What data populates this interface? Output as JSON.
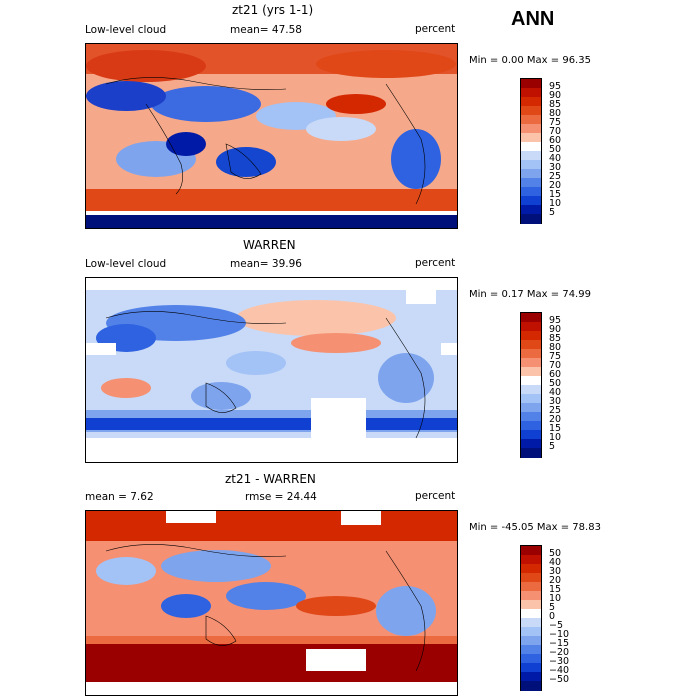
{
  "season": "ANN",
  "panels": [
    {
      "title": "zt21 (yrs 1-1)",
      "left_label": "Low-level cloud",
      "mid_label": "mean=  47.58",
      "right_label": "percent",
      "stats": "Min =    0.00 Max =   96.35",
      "levels": [
        "95",
        "90",
        "85",
        "80",
        "75",
        "70",
        "60",
        "50",
        "40",
        "30",
        "25",
        "20",
        "15",
        "10",
        "5"
      ],
      "colors": [
        "#9b0000",
        "#c01000",
        "#d42800",
        "#e04818",
        "#ec6a40",
        "#f59072",
        "#fbc4aa",
        "#ffffff",
        "#c8daf8",
        "#a3c2f5",
        "#7ea4ee",
        "#5282e8",
        "#2e62e0",
        "#1040d2",
        "#001aa8",
        "#00107a"
      ]
    },
    {
      "title": "WARREN",
      "left_label": "Low-level cloud",
      "mid_label": "mean=  39.96",
      "right_label": "percent",
      "stats": "Min =    0.17 Max =   74.99",
      "levels": [
        "95",
        "90",
        "85",
        "80",
        "75",
        "70",
        "60",
        "50",
        "40",
        "30",
        "25",
        "20",
        "15",
        "10",
        "5"
      ],
      "colors": [
        "#9b0000",
        "#c01000",
        "#d42800",
        "#e04818",
        "#ec6a40",
        "#f59072",
        "#fbc4aa",
        "#ffffff",
        "#c8daf8",
        "#a3c2f5",
        "#7ea4ee",
        "#5282e8",
        "#2e62e0",
        "#1040d2",
        "#001aa8",
        "#00107a"
      ]
    },
    {
      "title": "zt21 - WARREN",
      "left_label": "mean =    7.62",
      "mid_label": "rmse =   24.44",
      "right_label": "percent",
      "stats": "Min = -45.05 Max =   78.83",
      "levels": [
        "50",
        "40",
        "30",
        "20",
        "15",
        "10",
        "5",
        "0",
        "−5",
        "−10",
        "−15",
        "−20",
        "−30",
        "−40",
        "−50"
      ],
      "colors": [
        "#9b0000",
        "#c01000",
        "#d42800",
        "#e04818",
        "#ec6a40",
        "#f59072",
        "#fbc4aa",
        "#ffffff",
        "#c8daf8",
        "#a3c2f5",
        "#7ea4ee",
        "#5282e8",
        "#2e62e0",
        "#1040d2",
        "#001aa8",
        "#00107a"
      ]
    }
  ]
}
